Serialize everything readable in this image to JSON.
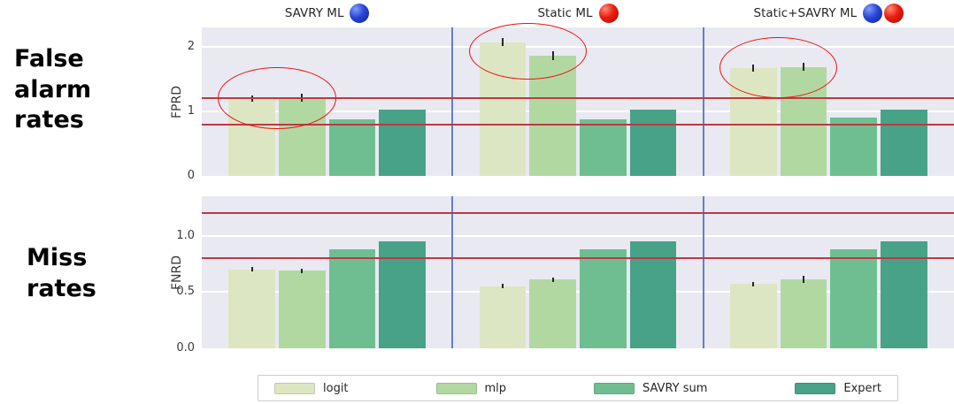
{
  "colors": {
    "panel_bg": "#e9e9f2",
    "grid": "#ffffff",
    "reference_line": "#bd3944",
    "group_divider": "#6b7cc4",
    "ellipse": "#ee1111",
    "error_bar": "#262626"
  },
  "row_labels": [
    {
      "text": "False\nalarm\nrates"
    },
    {
      "text": "Miss\nrates"
    }
  ],
  "legend": {
    "items": [
      {
        "label": "logit",
        "color": "#dde6c2"
      },
      {
        "label": "mlp",
        "color": "#b2d8a2"
      },
      {
        "label": "SAVRY sum",
        "color": "#6fbe91"
      },
      {
        "label": "Expert",
        "color": "#47a287"
      }
    ]
  },
  "chart_data": [
    {
      "type": "bar",
      "ylabel": "FPRD",
      "yticks": [
        "0",
        "1",
        "2"
      ],
      "ytick_values": [
        0,
        1,
        2
      ],
      "ylim": [
        0,
        2.3
      ],
      "reference_lines": [
        1.2,
        0.8
      ],
      "grid": true,
      "series_names": [
        "logit",
        "mlp",
        "SAVRY sum",
        "Expert"
      ],
      "panels": [
        {
          "title": "SAVRY ML",
          "icons": [
            "blue-sphere"
          ],
          "values": [
            1.2,
            1.21,
            0.88,
            1.03
          ],
          "errors": [
            0.05,
            0.06,
            0,
            0
          ],
          "highlight_bars": [
            0,
            1
          ]
        },
        {
          "title": "Static ML",
          "icons": [
            "red-sphere"
          ],
          "values": [
            2.07,
            1.86,
            0.88,
            1.03
          ],
          "errors": [
            0.06,
            0.07,
            0,
            0
          ],
          "highlight_bars": [
            0,
            1
          ]
        },
        {
          "title": "Static+SAVRY ML",
          "icons": [
            "blue-sphere",
            "red-sphere"
          ],
          "values": [
            1.67,
            1.69,
            0.9,
            1.03
          ],
          "errors": [
            0.05,
            0.06,
            0,
            0
          ],
          "highlight_bars": [
            0,
            1
          ]
        }
      ]
    },
    {
      "type": "bar",
      "ylabel": "FNRD",
      "yticks": [
        "0.0",
        "0.5",
        "1.0"
      ],
      "ytick_values": [
        0,
        0.5,
        1.0
      ],
      "ylim": [
        0,
        1.35
      ],
      "reference_lines": [
        1.2,
        0.8
      ],
      "grid": true,
      "series_names": [
        "logit",
        "mlp",
        "SAVRY sum",
        "Expert"
      ],
      "panels": [
        {
          "values": [
            0.7,
            0.69,
            0.88,
            0.95
          ],
          "errors": [
            0.02,
            0.02,
            0,
            0
          ]
        },
        {
          "values": [
            0.55,
            0.61,
            0.88,
            0.95
          ],
          "errors": [
            0.02,
            0.02,
            0,
            0
          ]
        },
        {
          "values": [
            0.57,
            0.61,
            0.88,
            0.95
          ],
          "errors": [
            0.02,
            0.03,
            0,
            0
          ]
        }
      ]
    }
  ]
}
